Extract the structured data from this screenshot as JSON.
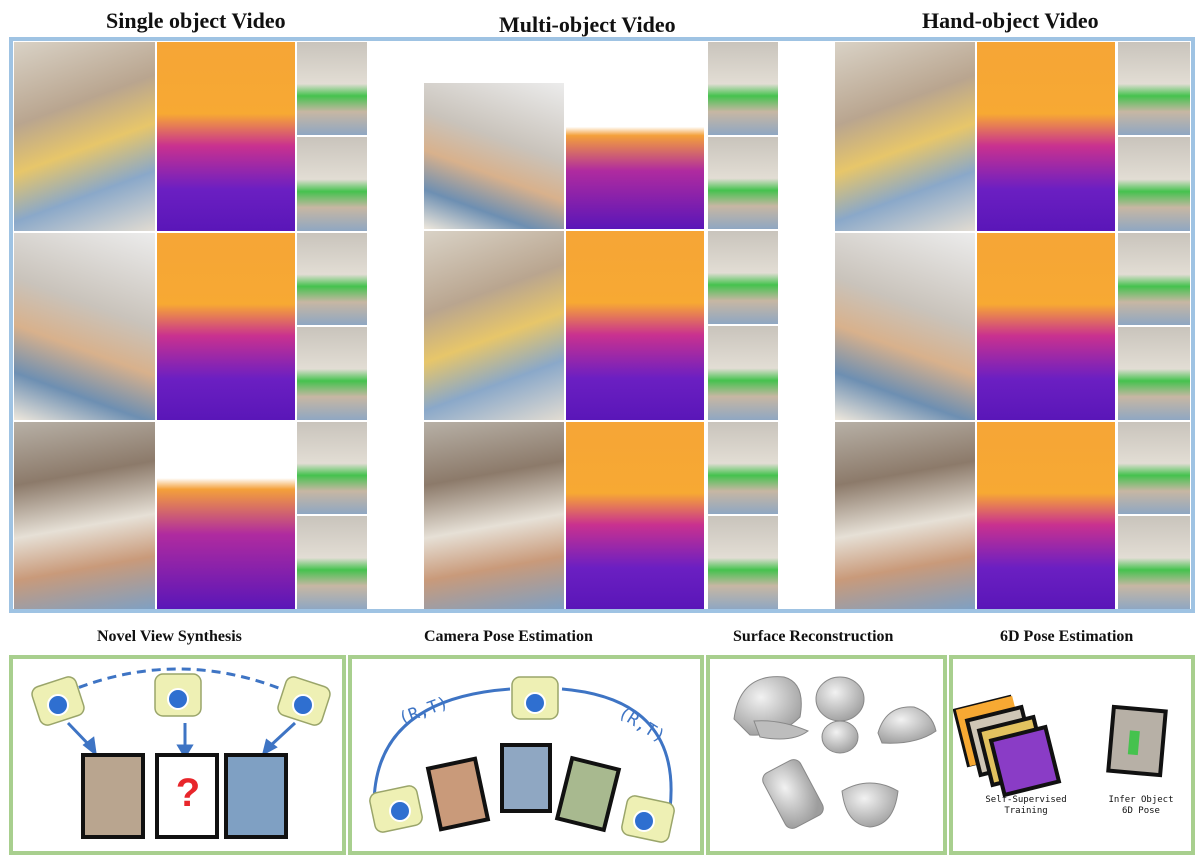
{
  "top_sections": {
    "single_object": {
      "title": "Single object Video"
    },
    "multi_object": {
      "title": "Multi-object Video"
    },
    "hand_object": {
      "title": "Hand-object Video"
    }
  },
  "bottom_sections": {
    "novel_view": {
      "title": "Novel View Synthesis",
      "question_mark": "?"
    },
    "camera_pose": {
      "title": "Camera Pose Estimation",
      "rt_left": "(R,T)",
      "rt_right": "(R,T)"
    },
    "surface": {
      "title": "Surface Reconstruction"
    },
    "pose6d": {
      "title": "6D Pose Estimation",
      "label_train_1": "Self-Supervised",
      "label_train_2": "Training",
      "label_infer_1": "Infer Object",
      "label_infer_2": "6D Pose"
    }
  },
  "colors": {
    "blue_frame": "#9fc3e3",
    "green_frame": "#a8cf8e",
    "arc_blue": "#3e74c4",
    "question_red": "#e8262b"
  }
}
